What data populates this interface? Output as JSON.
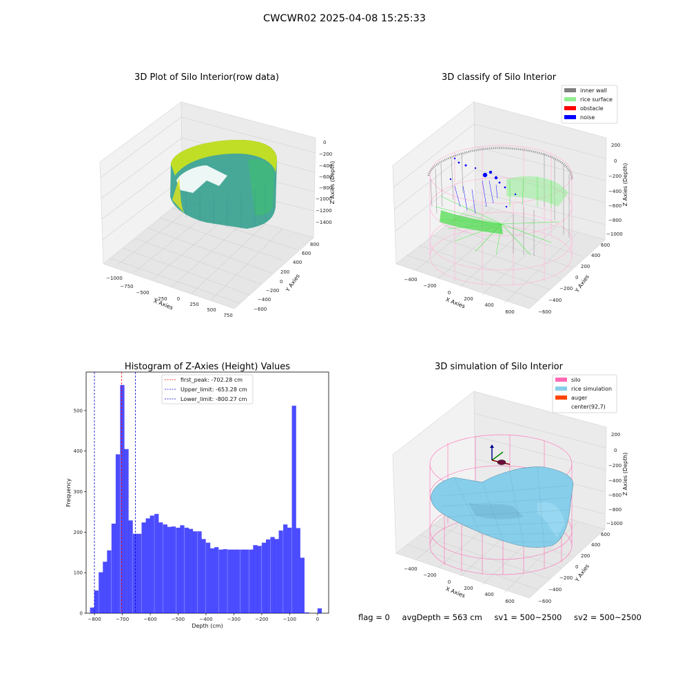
{
  "suptitle": "CWCWR02 2025-04-08 15:25:33",
  "panels": {
    "raw": {
      "title": "3D Plot of Silo Interior(row data)",
      "xlabel": "X Axies",
      "ylabel": "Y Axies",
      "zlabel": "Z Axies (Depth)",
      "xticks": [
        "−1000",
        "−750",
        "−500",
        "−250",
        "0",
        "250",
        "500",
        "750"
      ],
      "yticks": [
        "−600",
        "−400",
        "−200",
        "0",
        "200",
        "400",
        "600",
        "800"
      ],
      "zticks": [
        "0",
        "−200",
        "−400",
        "−600",
        "−800",
        "−1000",
        "−1200",
        "−1400"
      ]
    },
    "classify": {
      "title": "3D classify of Silo Interior",
      "xlabel": "X Axies",
      "ylabel": "Y Axies",
      "zlabel": "Z Axies (Depth)",
      "xticks": [
        "−400",
        "−200",
        "0",
        "200",
        "400",
        "600"
      ],
      "yticks": [
        "−600",
        "−400",
        "−200",
        "0",
        "200",
        "400",
        "600"
      ],
      "zticks": [
        "200",
        "0",
        "−200",
        "−400",
        "−600",
        "−800",
        "−1000"
      ],
      "legend": [
        {
          "label": "inner wall",
          "color": "#808080"
        },
        {
          "label": "rice surface",
          "color": "#90ee90"
        },
        {
          "label": "obstacle",
          "color": "#ff0000"
        },
        {
          "label": "noise",
          "color": "#0000ff"
        }
      ]
    },
    "simulation": {
      "title": "3D simulation of Silo Interior",
      "xlabel": "X Axies",
      "ylabel": "Y Axies",
      "zlabel": "Z Axies (Depth)",
      "xticks": [
        "−400",
        "−200",
        "0",
        "200",
        "400",
        "600"
      ],
      "yticks": [
        "−600",
        "−400",
        "−200",
        "0",
        "200",
        "400",
        "600"
      ],
      "zticks": [
        "200",
        "0",
        "−200",
        "−400",
        "−600",
        "−800",
        "−1000"
      ],
      "legend": [
        {
          "label": "silo",
          "color": "#ff69b4"
        },
        {
          "label": "rice simulation",
          "color": "#87ceeb"
        },
        {
          "label": "auger",
          "color": "#ff4500"
        },
        {
          "label": "center(92,7)",
          "color": null
        }
      ]
    }
  },
  "chart_data": {
    "type": "bar",
    "title": "Histogram of Z-Axies (Height) Values",
    "xlabel": "Depth (cm)",
    "ylabel": "Frequency",
    "xlim": [
      -830,
      40
    ],
    "ylim": [
      0,
      595
    ],
    "xticks": [
      -800,
      -700,
      -600,
      -500,
      -400,
      -300,
      -200,
      -100,
      0
    ],
    "xtick_labels": [
      "−800",
      "−700",
      "−600",
      "−500",
      "−400",
      "−300",
      "−200",
      "−100",
      "0"
    ],
    "yticks": [
      0,
      100,
      200,
      300,
      400,
      500
    ],
    "bar_color": "#0000ff",
    "bin_width": 15.4,
    "bins": [
      {
        "x": -816,
        "count": 14
      },
      {
        "x": -801,
        "count": 56
      },
      {
        "x": -785,
        "count": 101
      },
      {
        "x": -770,
        "count": 127
      },
      {
        "x": -755,
        "count": 155
      },
      {
        "x": -739,
        "count": 221
      },
      {
        "x": -724,
        "count": 392
      },
      {
        "x": -708,
        "count": 563
      },
      {
        "x": -693,
        "count": 405
      },
      {
        "x": -678,
        "count": 229
      },
      {
        "x": -662,
        "count": 196
      },
      {
        "x": -647,
        "count": 196
      },
      {
        "x": -631,
        "count": 224
      },
      {
        "x": -616,
        "count": 234
      },
      {
        "x": -601,
        "count": 241
      },
      {
        "x": -585,
        "count": 245
      },
      {
        "x": -570,
        "count": 224
      },
      {
        "x": -554,
        "count": 219
      },
      {
        "x": -539,
        "count": 213
      },
      {
        "x": -524,
        "count": 214
      },
      {
        "x": -508,
        "count": 211
      },
      {
        "x": -493,
        "count": 217
      },
      {
        "x": -477,
        "count": 211
      },
      {
        "x": -462,
        "count": 208
      },
      {
        "x": -447,
        "count": 202
      },
      {
        "x": -431,
        "count": 202
      },
      {
        "x": -416,
        "count": 183
      },
      {
        "x": -400,
        "count": 174
      },
      {
        "x": -385,
        "count": 160
      },
      {
        "x": -370,
        "count": 163
      },
      {
        "x": -354,
        "count": 157
      },
      {
        "x": -339,
        "count": 158
      },
      {
        "x": -323,
        "count": 157
      },
      {
        "x": -308,
        "count": 157
      },
      {
        "x": -293,
        "count": 157
      },
      {
        "x": -277,
        "count": 157
      },
      {
        "x": -262,
        "count": 157
      },
      {
        "x": -246,
        "count": 157
      },
      {
        "x": -231,
        "count": 168
      },
      {
        "x": -216,
        "count": 166
      },
      {
        "x": -200,
        "count": 174
      },
      {
        "x": -185,
        "count": 182
      },
      {
        "x": -169,
        "count": 188
      },
      {
        "x": -154,
        "count": 183
      },
      {
        "x": -139,
        "count": 204
      },
      {
        "x": -123,
        "count": 219
      },
      {
        "x": -108,
        "count": 211
      },
      {
        "x": -92,
        "count": 512
      },
      {
        "x": -77,
        "count": 210
      },
      {
        "x": -62,
        "count": 137
      },
      {
        "x": -46,
        "count": 2
      },
      {
        "x": 0,
        "count": 12
      }
    ],
    "vlines": [
      {
        "label": "first_peak: -702.28 cm",
        "x": -702.28,
        "color": "#ff0000"
      },
      {
        "label": "Upper_limit: -653.28 cm",
        "x": -653.28,
        "color": "#0000cc"
      },
      {
        "label": "Lower_limit: -800.27 cm",
        "x": -800.27,
        "color": "#0000cc"
      }
    ]
  },
  "footer": {
    "flag": "flag = 0",
    "avg_depth": "avgDepth = 563 cm",
    "sv1": "sv1 = 500~2500",
    "sv2": "sv2 = 500~2500"
  }
}
